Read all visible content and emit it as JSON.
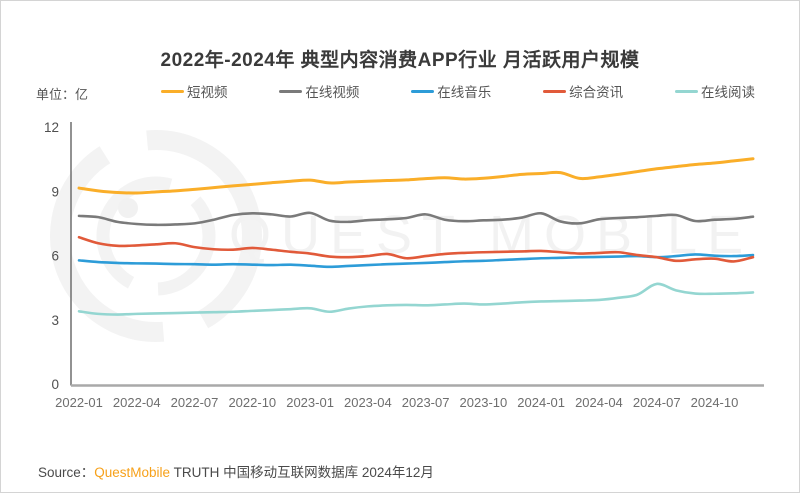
{
  "title": "2022年-2024年 典型内容消费APP行业 月活跃用户规模",
  "unit_label": "单位：亿",
  "watermark": {
    "text": "QUEST MOBILE"
  },
  "source": {
    "prefix": "Source：",
    "brand": "QuestMobile",
    "rest": " TRUTH 中国移动互联网数据库 2024年12月"
  },
  "colors": {
    "short_video": "#FAAE29",
    "online_video": "#7A7A7A",
    "online_music": "#2D9CD8",
    "news_feed": "#E15A3A",
    "online_reading": "#94D6D1",
    "axis_x": "#A9A9A9",
    "axis_y": "#6E6E6E",
    "brand_orange": "#F7A11A"
  },
  "chart_data": {
    "type": "line",
    "title": "2022年-2024年 典型内容消费APP行业 月活跃用户规模",
    "ylabel": "单位：亿",
    "ylim": [
      0,
      12
    ],
    "yticks": [
      0,
      3,
      6,
      9,
      12
    ],
    "grid": false,
    "legend_position": "top",
    "x": [
      "2022-01",
      "2022-02",
      "2022-03",
      "2022-04",
      "2022-05",
      "2022-06",
      "2022-07",
      "2022-08",
      "2022-09",
      "2022-10",
      "2022-11",
      "2022-12",
      "2023-01",
      "2023-02",
      "2023-03",
      "2023-04",
      "2023-05",
      "2023-06",
      "2023-07",
      "2023-08",
      "2023-09",
      "2023-10",
      "2023-11",
      "2023-12",
      "2024-01",
      "2024-02",
      "2024-03",
      "2024-04",
      "2024-05",
      "2024-06",
      "2024-07",
      "2024-08",
      "2024-09",
      "2024-10",
      "2024-11",
      "2024-12"
    ],
    "x_tick_every": 3,
    "series": [
      {
        "name": "短视频",
        "color": "#FAAE29",
        "values": [
          9.18,
          9.05,
          8.97,
          8.95,
          9.0,
          9.05,
          9.12,
          9.2,
          9.28,
          9.35,
          9.43,
          9.5,
          9.55,
          9.42,
          9.46,
          9.5,
          9.53,
          9.56,
          9.62,
          9.66,
          9.6,
          9.64,
          9.72,
          9.82,
          9.86,
          9.9,
          9.63,
          9.7,
          9.82,
          9.95,
          10.08,
          10.18,
          10.28,
          10.35,
          10.45,
          10.55
        ]
      },
      {
        "name": "在线视频",
        "color": "#7A7A7A",
        "values": [
          7.88,
          7.82,
          7.6,
          7.5,
          7.46,
          7.48,
          7.53,
          7.7,
          7.92,
          8.0,
          7.95,
          7.85,
          8.02,
          7.66,
          7.6,
          7.68,
          7.72,
          7.78,
          7.95,
          7.7,
          7.63,
          7.67,
          7.7,
          7.8,
          8.0,
          7.62,
          7.53,
          7.72,
          7.78,
          7.82,
          7.88,
          7.92,
          7.64,
          7.7,
          7.74,
          7.84
        ]
      },
      {
        "name": "在线音乐",
        "color": "#2D9CD8",
        "values": [
          5.8,
          5.72,
          5.68,
          5.66,
          5.65,
          5.63,
          5.62,
          5.6,
          5.62,
          5.6,
          5.58,
          5.6,
          5.55,
          5.5,
          5.54,
          5.58,
          5.62,
          5.65,
          5.68,
          5.72,
          5.76,
          5.78,
          5.82,
          5.86,
          5.9,
          5.92,
          5.95,
          5.96,
          5.98,
          6.0,
          5.95,
          6.0,
          6.08,
          6.02,
          6.0,
          6.05
        ]
      },
      {
        "name": "综合资讯",
        "color": "#E15A3A",
        "values": [
          6.88,
          6.6,
          6.48,
          6.5,
          6.55,
          6.6,
          6.42,
          6.32,
          6.3,
          6.38,
          6.3,
          6.2,
          6.12,
          5.98,
          5.95,
          6.0,
          6.1,
          5.9,
          6.0,
          6.1,
          6.15,
          6.18,
          6.2,
          6.22,
          6.24,
          6.18,
          6.12,
          6.15,
          6.18,
          6.05,
          5.95,
          5.78,
          5.85,
          5.88,
          5.75,
          5.95
        ]
      },
      {
        "name": "在线阅读",
        "color": "#94D6D1",
        "values": [
          3.42,
          3.3,
          3.27,
          3.3,
          3.32,
          3.34,
          3.36,
          3.38,
          3.4,
          3.44,
          3.48,
          3.52,
          3.56,
          3.4,
          3.55,
          3.65,
          3.7,
          3.72,
          3.7,
          3.74,
          3.78,
          3.74,
          3.78,
          3.84,
          3.88,
          3.9,
          3.92,
          3.95,
          4.05,
          4.2,
          4.7,
          4.4,
          4.25,
          4.24,
          4.26,
          4.3
        ]
      }
    ]
  }
}
